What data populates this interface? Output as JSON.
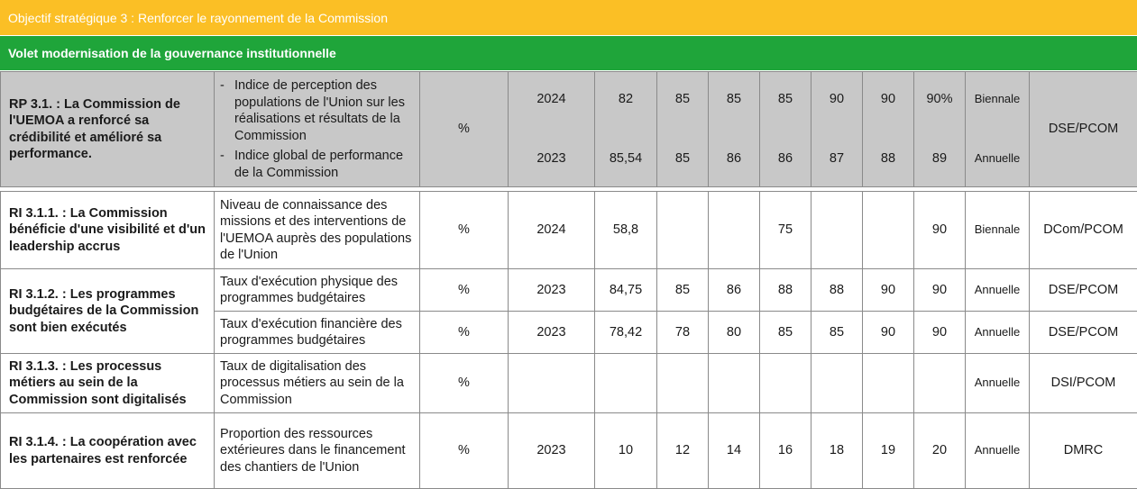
{
  "header": {
    "objective": "Objectif stratégique 3 : Renforcer le rayonnement de la Commission",
    "volet": "Volet modernisation de la gouvernance institutionnelle"
  },
  "rp": {
    "result": "RP 3.1. : La Commission de l'UEMOA a renforcé sa crédibilité et amélioré sa performance.",
    "unit": "%",
    "responsible": "DSE/PCOM",
    "indicators": [
      {
        "text": "Indice de perception des populations de l'Union sur les réalisations et résultats de la Commission",
        "year": "2024",
        "values": [
          "82",
          "85",
          "85",
          "85",
          "90",
          "90",
          "90%"
        ],
        "frequency": "Biennale"
      },
      {
        "text": "Indice global de performance de la Commission",
        "year": "2023",
        "values": [
          "85,54",
          "85",
          "86",
          "86",
          "87",
          "88",
          "89"
        ],
        "frequency": "Annuelle"
      }
    ]
  },
  "rows": [
    {
      "result": "RI 3.1.1. : La Commission bénéficie d'une visibilité et d'un leadership accrus",
      "indicator": "Niveau de connaissance des missions et des interventions de l'UEMOA auprès des populations de l'Union",
      "unit": "%",
      "year": "2024",
      "values": [
        "58,8",
        "",
        "",
        "75",
        "",
        "",
        "90"
      ],
      "frequency": "Biennale",
      "responsible": "DCom/PCOM"
    },
    {
      "result": "RI 3.1.2. : Les programmes budgétaires de la Commission sont bien exécutés",
      "indicator": "Taux d'exécution physique des programmes budgétaires",
      "unit": "%",
      "year": "2023",
      "values": [
        "84,75",
        "85",
        "86",
        "88",
        "88",
        "90",
        "90"
      ],
      "frequency": "Annuelle",
      "responsible": "DSE/PCOM"
    },
    {
      "result": "",
      "indicator": "Taux d'exécution financière des programmes budgétaires",
      "unit": "%",
      "year": "2023",
      "values": [
        "78,42",
        "78",
        "80",
        "85",
        "85",
        "90",
        "90"
      ],
      "frequency": "Annuelle",
      "responsible": "DSE/PCOM"
    },
    {
      "result": "RI 3.1.3. : Les processus métiers au sein de la Commission sont digitalisés",
      "indicator": "Taux de digitalisation des processus métiers au sein de la Commission",
      "unit": "%",
      "year": "",
      "values": [
        "",
        "",
        "",
        "",
        "",
        "",
        ""
      ],
      "frequency": "Annuelle",
      "responsible": "DSI/PCOM"
    },
    {
      "result": "RI 3.1.4. : La coopération avec les partenaires est renforcée",
      "indicator": "Proportion des ressources extérieures dans le financement des chantiers de l'Union",
      "unit": "%",
      "year": "2023",
      "values": [
        "10",
        "12",
        "14",
        "16",
        "18",
        "19",
        "20"
      ],
      "frequency": "Annuelle",
      "responsible": "DMRC"
    }
  ]
}
